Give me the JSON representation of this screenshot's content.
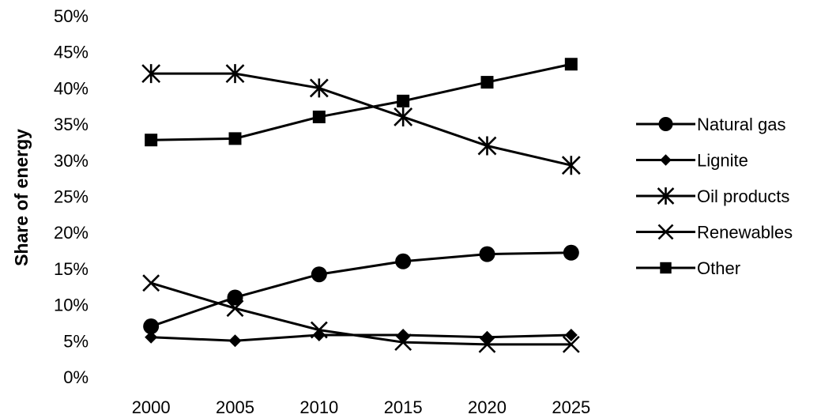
{
  "chart_data": {
    "type": "line",
    "ylabel": "Share of energy",
    "xlabel": "",
    "categories": [
      "2000",
      "2005",
      "2010",
      "2015",
      "2020",
      "2025"
    ],
    "y_tick_labels": [
      "0%",
      "5%",
      "10%",
      "15%",
      "20%",
      "25%",
      "30%",
      "35%",
      "40%",
      "45%",
      "50%"
    ],
    "ylim": [
      0,
      50
    ],
    "grid": false,
    "legend_position": "right",
    "series": [
      {
        "name": "Natural gas",
        "marker": "circle",
        "values": [
          7,
          11,
          14.2,
          16,
          17,
          17.2
        ]
      },
      {
        "name": "Lignite",
        "marker": "diamond",
        "values": [
          5.5,
          5,
          5.8,
          5.8,
          5.5,
          5.8
        ]
      },
      {
        "name": "Oil products",
        "marker": "asterisk",
        "values": [
          42,
          42,
          40,
          36,
          32,
          29.3
        ]
      },
      {
        "name": "Renewables",
        "marker": "cross",
        "values": [
          13,
          9.5,
          6.5,
          4.8,
          4.5,
          4.5
        ]
      },
      {
        "name": "Other",
        "marker": "square",
        "values": [
          32.8,
          33,
          36,
          38.2,
          40.8,
          43.3
        ]
      }
    ]
  }
}
